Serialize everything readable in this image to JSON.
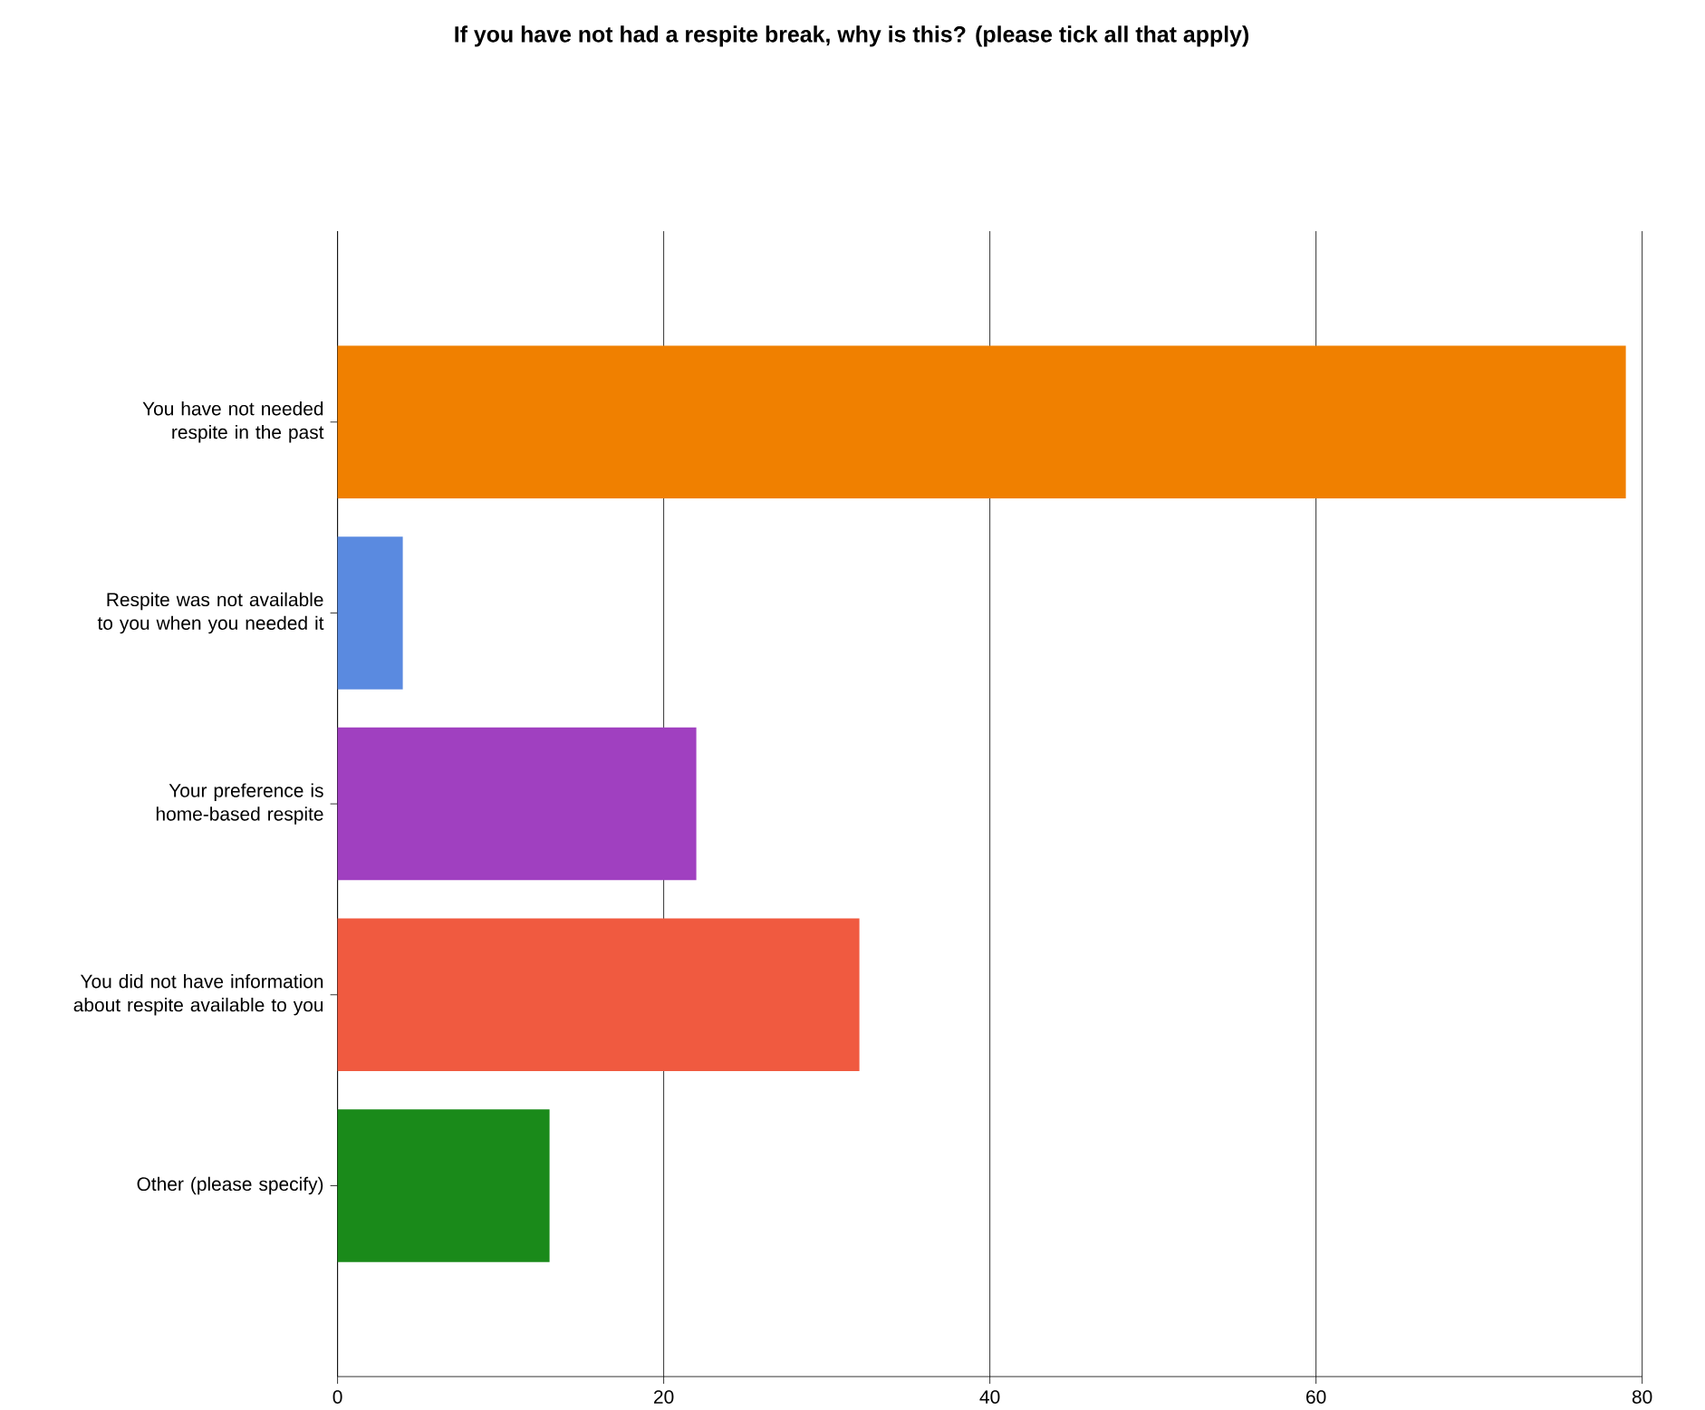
{
  "chart_data": {
    "type": "bar",
    "orientation": "horizontal",
    "title": "If you have not had a respite break, why is this? (please tick all that apply)",
    "categories": [
      "You have not needed respite in the past",
      "Respite was not available to you when you needed it",
      "Your preference is home-based respite",
      "You did not have information about respite available to you",
      "Other (please specify)"
    ],
    "values": [
      79,
      4,
      22,
      32,
      13
    ],
    "colors": [
      "#f08000",
      "#5a8ae0",
      "#a040c0",
      "#f05a40",
      "#1a8a1a"
    ],
    "xlim": [
      0,
      80
    ],
    "xticks": [
      0,
      20,
      40,
      60,
      80
    ],
    "grid": "x"
  }
}
